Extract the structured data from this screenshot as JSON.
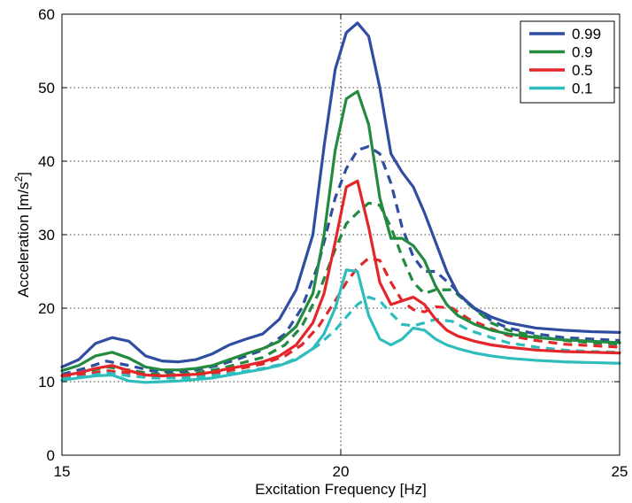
{
  "chart_data": {
    "type": "line",
    "title": "",
    "xlabel": "Excitation Frequency [Hz]",
    "ylabel": "Acceleration [m/s²]",
    "ylabel_base": "Acceleration [m/s",
    "ylabel_sup": "2",
    "ylabel_end": "]",
    "xlim": [
      15,
      25
    ],
    "ylim": [
      0,
      60
    ],
    "xticks": [
      15,
      20,
      25
    ],
    "yticks": [
      0,
      10,
      20,
      30,
      40,
      50,
      60
    ],
    "grid": true,
    "legend_position": "top-right",
    "legend": [
      "0.99",
      "0.9",
      "0.5",
      "0.1"
    ],
    "series": [
      {
        "name": "0.99",
        "style": "solid",
        "color": "#2f4da1",
        "x": [
          15,
          15.3,
          15.6,
          15.9,
          16.2,
          16.5,
          16.8,
          17.1,
          17.4,
          17.7,
          18.0,
          18.3,
          18.6,
          18.9,
          19.2,
          19.5,
          19.7,
          19.9,
          20.1,
          20.3,
          20.5,
          20.7,
          20.9,
          21.1,
          21.3,
          21.5,
          21.7,
          21.9,
          22.1,
          22.4,
          22.7,
          23.0,
          23.5,
          24.0,
          24.5,
          25.0
        ],
        "y": [
          12,
          13,
          15.2,
          16,
          15.5,
          13.5,
          12.8,
          12.7,
          13,
          13.8,
          15,
          15.8,
          16.5,
          18.5,
          22.5,
          30,
          42,
          52.5,
          57.5,
          58.8,
          57,
          50,
          41,
          38.5,
          36.5,
          33,
          29,
          25,
          22,
          20,
          18.8,
          18,
          17.3,
          17,
          16.8,
          16.7
        ]
      },
      {
        "name": "0.9",
        "style": "solid",
        "color": "#238a3f",
        "x": [
          15,
          15.3,
          15.6,
          15.9,
          16.2,
          16.5,
          16.8,
          17.1,
          17.4,
          17.7,
          18.0,
          18.3,
          18.6,
          18.9,
          19.2,
          19.5,
          19.7,
          19.9,
          20.1,
          20.3,
          20.5,
          20.7,
          20.9,
          21.1,
          21.3,
          21.5,
          21.7,
          21.9,
          22.1,
          22.4,
          22.7,
          23.0,
          23.5,
          24.0,
          24.5,
          25.0
        ],
        "y": [
          11.5,
          12.2,
          13.5,
          14,
          13.2,
          12,
          11.6,
          11.6,
          11.8,
          12.2,
          13,
          13.8,
          14.5,
          15.5,
          17.5,
          22,
          30,
          41.5,
          48.5,
          49.5,
          45,
          35,
          29.5,
          29.5,
          28.5,
          26.5,
          23,
          20.5,
          19,
          17.8,
          17,
          16.5,
          16,
          15.7,
          15.5,
          15.3
        ]
      },
      {
        "name": "0.5",
        "style": "solid",
        "color": "#e3262a",
        "x": [
          15,
          15.3,
          15.6,
          15.9,
          16.2,
          16.5,
          16.8,
          17.1,
          17.4,
          17.7,
          18.0,
          18.3,
          18.6,
          18.9,
          19.2,
          19.5,
          19.7,
          19.9,
          20.1,
          20.3,
          20.5,
          20.7,
          20.9,
          21.1,
          21.3,
          21.5,
          21.7,
          21.9,
          22.1,
          22.4,
          22.7,
          23.0,
          23.5,
          24.0,
          24.5,
          25.0
        ],
        "y": [
          10.8,
          11.2,
          11.8,
          12.2,
          11.5,
          10.9,
          10.8,
          10.9,
          11,
          11.3,
          11.8,
          12.2,
          12.7,
          13.5,
          15,
          18,
          22,
          29,
          36.5,
          37.3,
          31,
          23.5,
          20.5,
          21,
          21.5,
          20.5,
          18.5,
          17,
          16.2,
          15.5,
          15,
          14.7,
          14.3,
          14.1,
          14,
          13.9
        ]
      },
      {
        "name": "0.1",
        "style": "solid",
        "color": "#2fbcbc",
        "x": [
          15,
          15.3,
          15.6,
          15.9,
          16.2,
          16.5,
          16.8,
          17.1,
          17.4,
          17.7,
          18.0,
          18.3,
          18.6,
          18.9,
          19.2,
          19.5,
          19.7,
          19.9,
          20.1,
          20.3,
          20.5,
          20.7,
          20.9,
          21.1,
          21.3,
          21.5,
          21.7,
          21.9,
          22.1,
          22.4,
          22.7,
          23.0,
          23.5,
          24.0,
          24.5,
          25.0
        ],
        "y": [
          10.2,
          10.5,
          10.8,
          10.9,
          10.1,
          9.9,
          10,
          10.1,
          10.3,
          10.5,
          10.9,
          11.3,
          11.7,
          12.2,
          13,
          14.5,
          16.5,
          20,
          25.2,
          25,
          19,
          15.8,
          15,
          15.8,
          17.3,
          17,
          15.8,
          15,
          14.5,
          13.9,
          13.5,
          13.2,
          12.9,
          12.7,
          12.6,
          12.5
        ]
      },
      {
        "name": "",
        "style": "dashed",
        "color": "#2f4da1",
        "x": [
          15,
          15.4,
          15.8,
          16.2,
          16.6,
          17.0,
          17.4,
          17.8,
          18.2,
          18.6,
          19.0,
          19.3,
          19.6,
          19.9,
          20.1,
          20.3,
          20.5,
          20.7,
          20.9,
          21.1,
          21.3,
          21.5,
          21.7,
          22.0,
          22.3,
          22.7,
          23.0,
          23.5,
          24.0,
          24.5,
          25.0
        ],
        "y": [
          11,
          11.8,
          12.8,
          12.2,
          11.5,
          11.3,
          11.6,
          12.2,
          13.2,
          14.3,
          16.5,
          20,
          26,
          35,
          39,
          41.5,
          42,
          41,
          37,
          31,
          27,
          25,
          25,
          23,
          20.5,
          18.3,
          17.3,
          16.5,
          16,
          15.8,
          15.6
        ]
      },
      {
        "name": "",
        "style": "dashed",
        "color": "#238a3f",
        "x": [
          15,
          15.4,
          15.8,
          16.2,
          16.6,
          17.0,
          17.4,
          17.8,
          18.2,
          18.6,
          19.0,
          19.3,
          19.6,
          19.9,
          20.1,
          20.3,
          20.5,
          20.7,
          20.9,
          21.1,
          21.3,
          21.5,
          21.7,
          22.0,
          22.3,
          22.7,
          23.0,
          23.5,
          24.0,
          24.5,
          25.0
        ],
        "y": [
          10.8,
          11.3,
          12,
          11.6,
          11.1,
          11,
          11.2,
          11.7,
          12.5,
          13.3,
          15,
          17.5,
          22,
          28,
          31.5,
          33,
          34.3,
          34,
          31,
          27,
          23.5,
          22,
          22.5,
          22.5,
          20.5,
          18,
          17,
          16.2,
          15.6,
          15.3,
          15.1
        ]
      },
      {
        "name": "",
        "style": "dashed",
        "color": "#e3262a",
        "x": [
          15,
          15.4,
          15.8,
          16.2,
          16.6,
          17.0,
          17.4,
          17.8,
          18.2,
          18.6,
          19.0,
          19.3,
          19.6,
          19.9,
          20.1,
          20.3,
          20.5,
          20.7,
          20.9,
          21.1,
          21.3,
          21.5,
          21.7,
          22.0,
          22.3,
          22.7,
          23.0,
          23.5,
          24.0,
          24.5,
          25.0
        ],
        "y": [
          10.6,
          11,
          11.5,
          11.2,
          10.9,
          10.8,
          10.9,
          11.2,
          11.8,
          12.4,
          13.5,
          15,
          17.5,
          21,
          23.5,
          25.5,
          26.8,
          26.5,
          23.5,
          21,
          19.8,
          19.5,
          20.2,
          20,
          18.5,
          17.2,
          16.3,
          15.6,
          15.1,
          14.9,
          14.7
        ]
      },
      {
        "name": "",
        "style": "dashed",
        "color": "#2fbcbc",
        "x": [
          15,
          15.4,
          15.8,
          16.2,
          16.6,
          17.0,
          17.4,
          17.8,
          18.2,
          18.6,
          19.0,
          19.3,
          19.6,
          19.9,
          20.1,
          20.3,
          20.5,
          20.7,
          20.9,
          21.1,
          21.3,
          21.5,
          21.7,
          22.0,
          22.3,
          22.7,
          23.0,
          23.5,
          24.0,
          24.5,
          25.0
        ],
        "y": [
          10.4,
          10.7,
          11.2,
          10.8,
          10.5,
          10.5,
          10.6,
          10.9,
          11.3,
          11.8,
          12.5,
          13.5,
          15,
          17,
          18.8,
          20.5,
          21.5,
          21,
          19.3,
          17.8,
          17.6,
          18,
          18.5,
          18.2,
          17,
          16,
          15.3,
          14.7,
          14.3,
          14.1,
          14
        ]
      }
    ]
  }
}
